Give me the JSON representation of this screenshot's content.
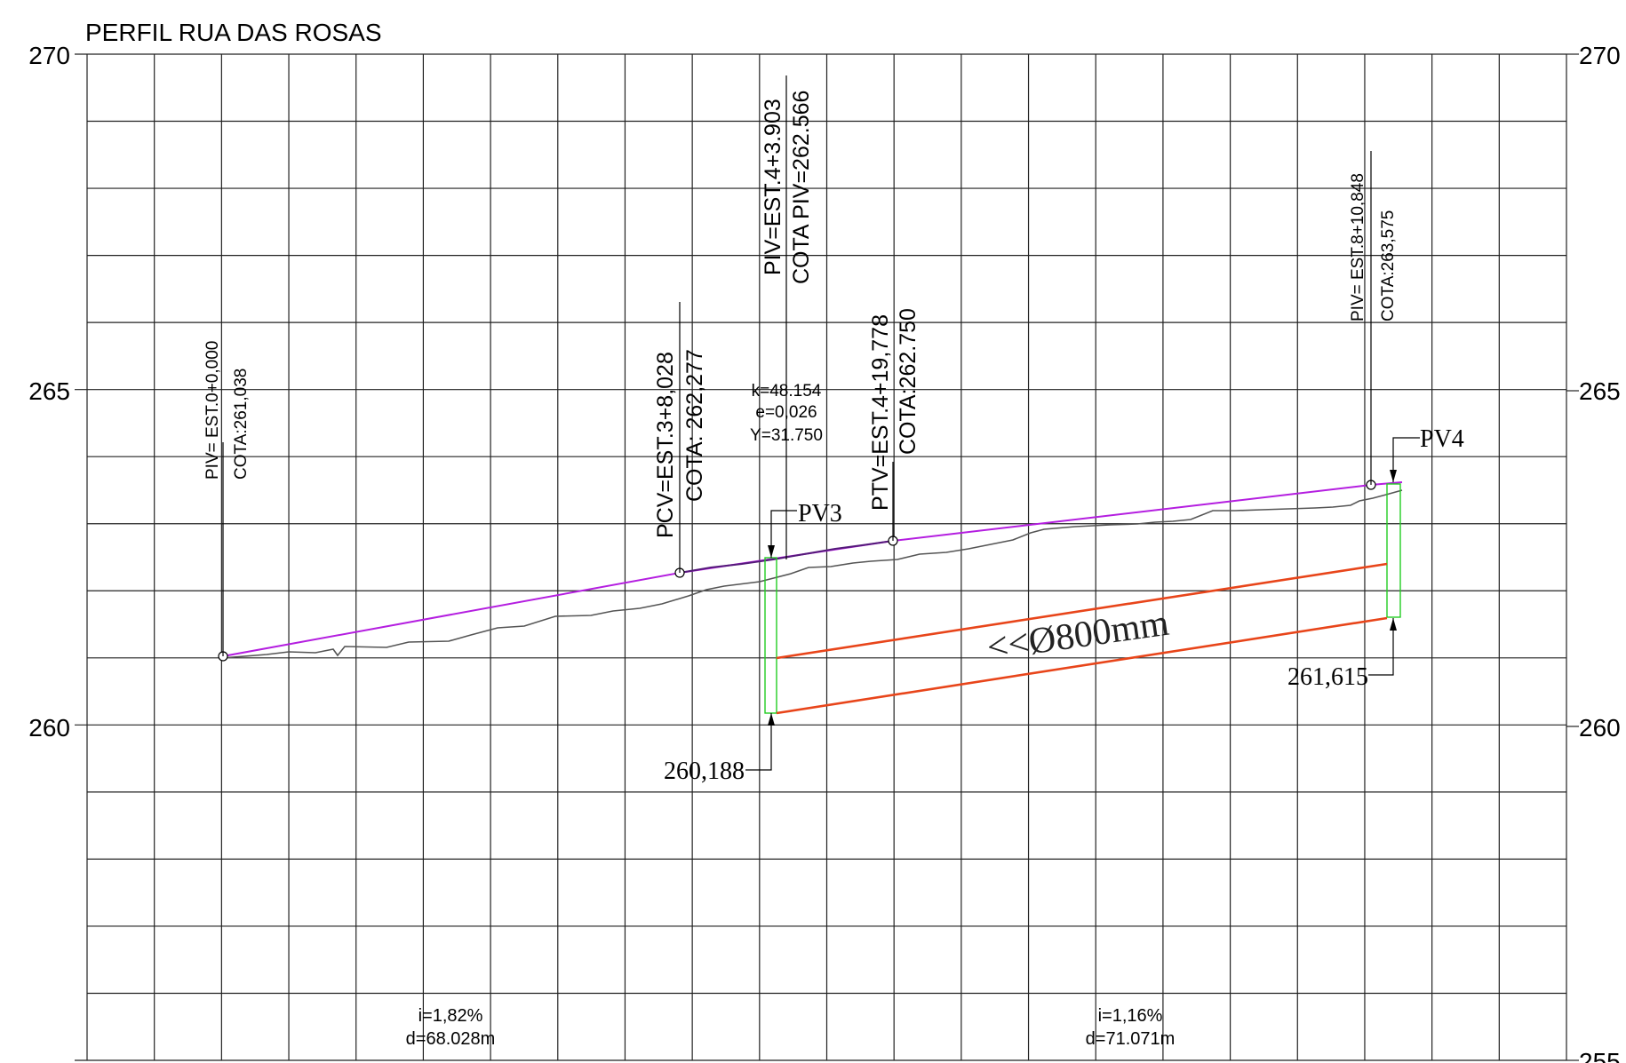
{
  "title": "PERFIL RUA DAS ROSAS",
  "elevation_labels": {
    "left": [
      "270",
      "265",
      "260"
    ],
    "right": [
      "270",
      "265",
      "260",
      "255"
    ]
  },
  "annotations": {
    "piv1": {
      "line1": "PIV= EST.0+0,000",
      "line2": "COTA:261,038"
    },
    "pcv": {
      "line1": "PCV=EST.3+8,028",
      "line2": "COTA: 262,277"
    },
    "piv2": {
      "line1": "PIV=EST.4+3.903",
      "line2": "COTA PIV=262.566"
    },
    "curve": {
      "k": "k=48.154",
      "e": "e=0,026",
      "y": "Y=31.750"
    },
    "ptv": {
      "line1": "PTV=EST.4+19,778",
      "line2": "COTA:262.750"
    },
    "piv3": {
      "line1": "PIV= EST.8+10,848",
      "line2": "COTA:263,575"
    }
  },
  "wells": {
    "pv3": "PV3",
    "pv4": "PV4"
  },
  "pipe": {
    "label": "<<Ø800mm",
    "invert_start": "260,188",
    "invert_end": "261,615"
  },
  "slopes": [
    {
      "i": "i=1,82%",
      "d": "d=68.028m"
    },
    {
      "i": "i=1,16%",
      "d": "d=71.071m"
    }
  ],
  "colors": {
    "grid": "#222222",
    "grade_line": "#b41ee0",
    "vertical_curve": "#551a7a",
    "terrain": "#555555",
    "pipe": "#e8451a",
    "well": "#22cc22"
  }
}
